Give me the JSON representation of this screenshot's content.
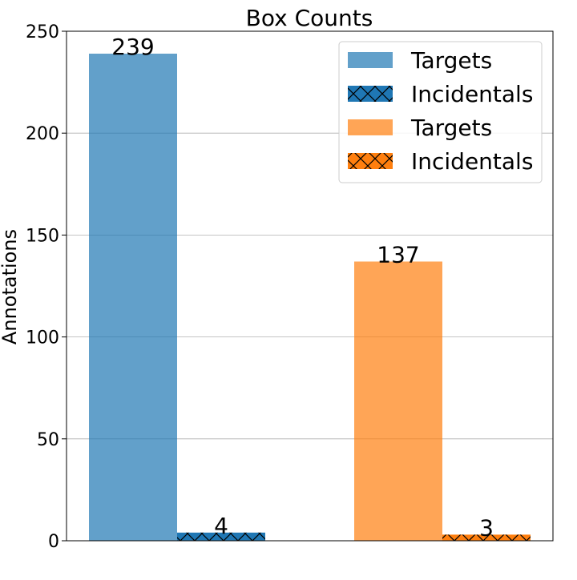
{
  "chart_data": {
    "type": "bar",
    "title": "Box Counts",
    "xlabel": "",
    "ylabel": "Annotations",
    "ylim": [
      0,
      250
    ],
    "yticks": [
      0,
      50,
      100,
      150,
      200,
      250
    ],
    "grid": "horizontal",
    "legend_position": "top-right",
    "groups": [
      {
        "color": "#1f77b4",
        "bars": [
          {
            "label": "Targets",
            "value": 239,
            "hatch": false
          },
          {
            "label": "Incidentals",
            "value": 4,
            "hatch": true
          }
        ]
      },
      {
        "color": "#ff7f0e",
        "bars": [
          {
            "label": "Targets",
            "value": 137,
            "hatch": false
          },
          {
            "label": "Incidentals",
            "value": 3,
            "hatch": true
          }
        ]
      }
    ],
    "legend": [
      {
        "label": "Targets",
        "color": "#1f77b4",
        "hatch": false
      },
      {
        "label": "Incidentals",
        "color": "#1f77b4",
        "hatch": true
      },
      {
        "label": "Targets",
        "color": "#ff7f0e",
        "hatch": false
      },
      {
        "label": "Incidentals",
        "color": "#ff7f0e",
        "hatch": true
      }
    ]
  }
}
